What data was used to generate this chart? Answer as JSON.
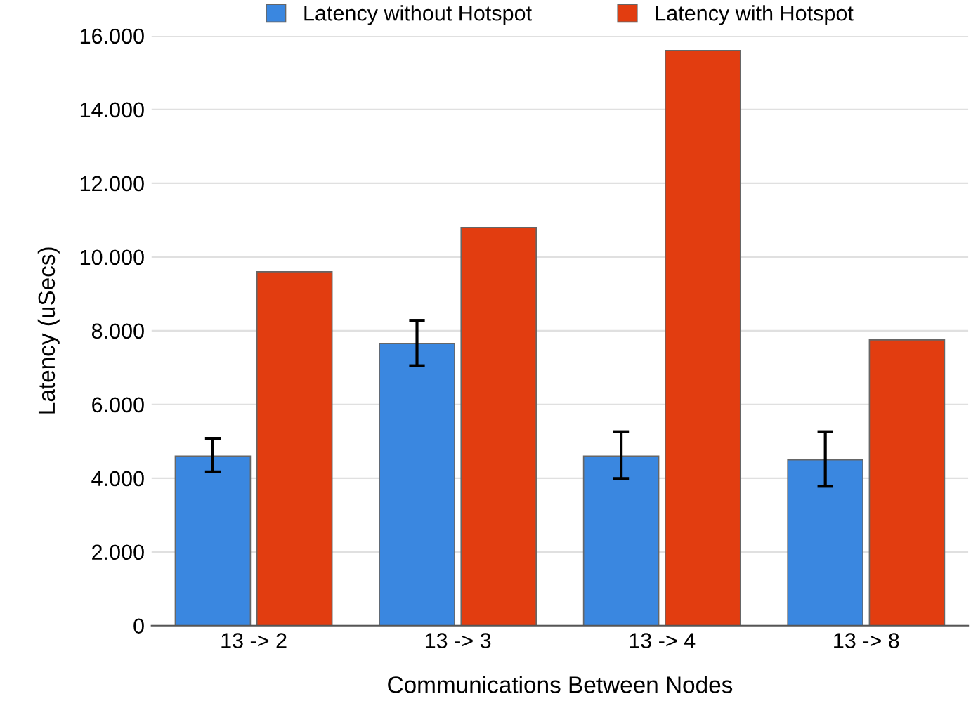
{
  "chart_data": {
    "type": "bar",
    "xlabel": "Communications Between Nodes",
    "ylabel": "Latency (uSecs)",
    "categories": [
      "13 -> 2",
      "13 -> 3",
      "13 -> 4",
      "13 -> 8"
    ],
    "series": [
      {
        "name": "Latency without Hotspot",
        "color": "#3a87e0",
        "values": [
          4600,
          7650,
          4600,
          4500
        ],
        "errors": [
          [
            4170,
            5080
          ],
          [
            7050,
            8280
          ],
          [
            3990,
            5260
          ],
          [
            3780,
            5260
          ]
        ]
      },
      {
        "name": "Latency with Hotspot",
        "color": "#e23d10",
        "values": [
          9600,
          10800,
          15600,
          7750
        ]
      }
    ],
    "ylim": [
      0,
      16000
    ],
    "yticks": [
      0,
      {
        "value": 2000,
        "label": "2.000"
      },
      {
        "value": 4000,
        "label": "4.000"
      },
      {
        "value": 6000,
        "label": "6.000"
      },
      {
        "value": 8000,
        "label": "8.000"
      },
      {
        "value": 10000,
        "label": "10.000"
      },
      {
        "value": 12000,
        "label": "12.000"
      },
      {
        "value": 14000,
        "label": "14.000"
      },
      {
        "value": 16000,
        "label": "16.000"
      }
    ],
    "grid": "y",
    "legend": "top"
  }
}
